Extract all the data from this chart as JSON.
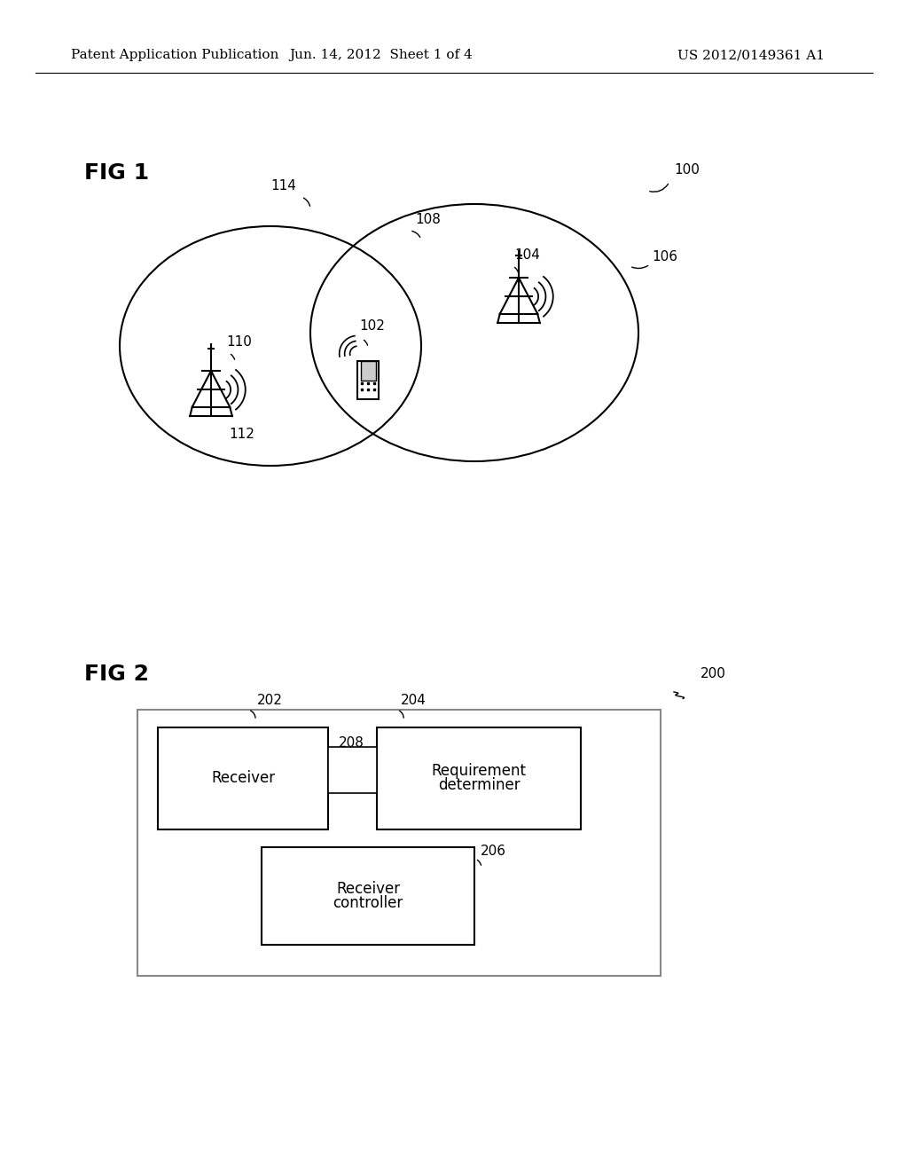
{
  "bg_color": "#ffffff",
  "header_left": "Patent Application Publication",
  "header_center": "Jun. 14, 2012  Sheet 1 of 4",
  "header_right": "US 2012/0149361 A1",
  "fig1_label": "FIG 1",
  "fig2_label": "FIG 2",
  "label_100": "100",
  "label_106": "106",
  "label_108": "108",
  "label_114": "114",
  "label_110": "110",
  "label_112": "112",
  "label_102": "102",
  "label_104": "104",
  "label_200": "200",
  "label_202": "202",
  "label_204": "204",
  "label_206": "206",
  "label_208": "208",
  "receiver_text": "Receiver",
  "reqdet_text1": "Requirement",
  "reqdet_text2": "determiner",
  "recctrl_text1": "Receiver",
  "recctrl_text2": "controller"
}
